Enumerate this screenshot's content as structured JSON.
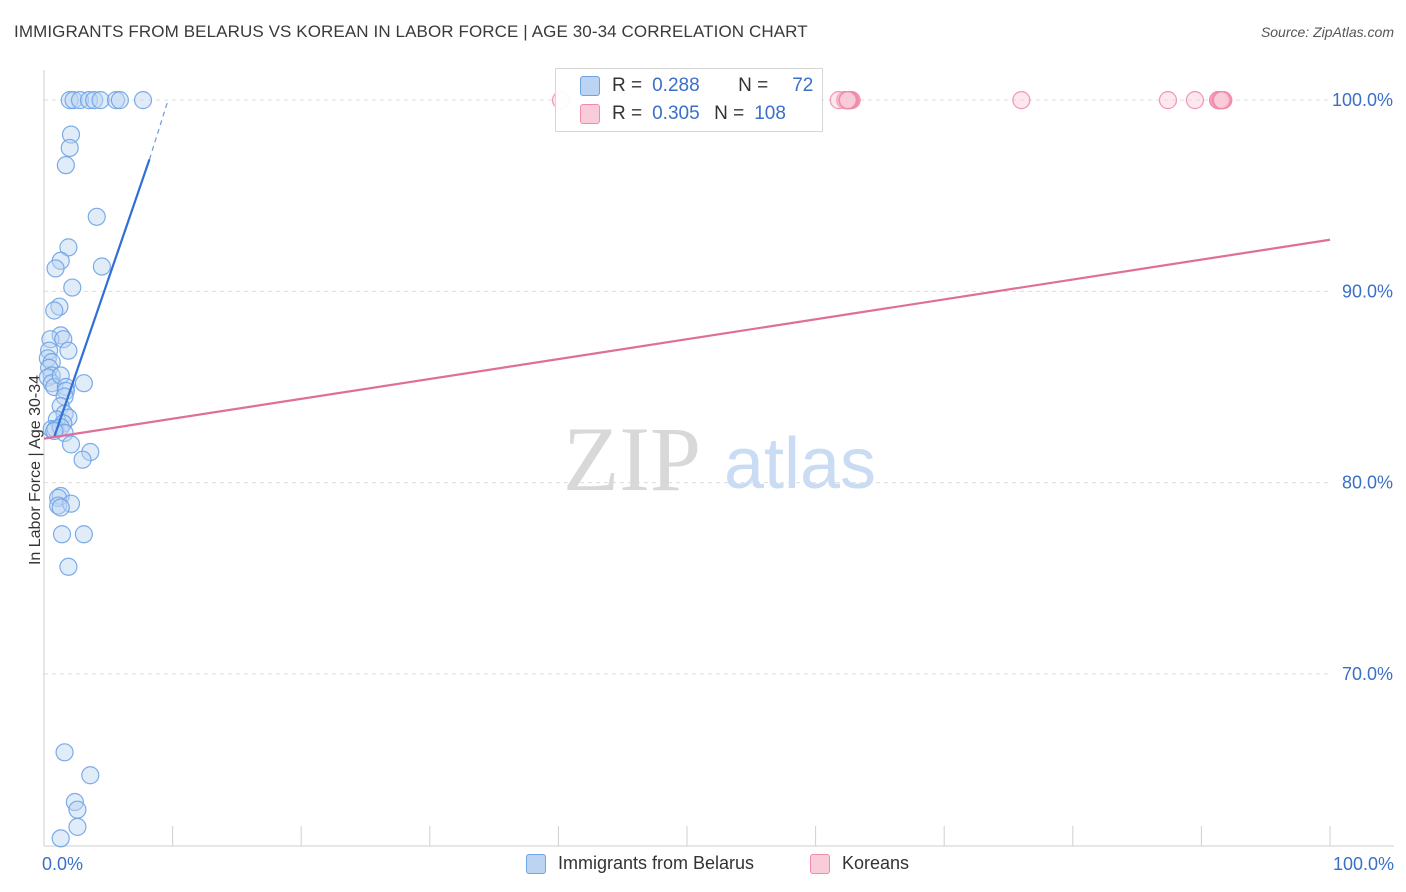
{
  "title": "IMMIGRANTS FROM BELARUS VS KOREAN IN LABOR FORCE | AGE 30-34 CORRELATION CHART",
  "source": "Source: ZipAtlas.com",
  "watermark": {
    "zip": "ZIP",
    "atlas": "atlas"
  },
  "legend_top": {
    "r_label": "R =",
    "n_label": "N =",
    "rows": [
      {
        "r": "0.288",
        "n": "72"
      },
      {
        "r": "0.305",
        "n": "108"
      }
    ]
  },
  "chart_data": {
    "type": "scatter",
    "title": "IMMIGRANTS FROM BELARUS VS KOREAN IN LABOR FORCE | AGE 30-34 CORRELATION CHART",
    "xlabel": "",
    "ylabel": "In Labor Force | Age 30-34",
    "xlim": [
      0,
      100
    ],
    "ylim": [
      61,
      101
    ],
    "x_tick_labels": [
      "0.0%",
      "100.0%"
    ],
    "y_ticks": [
      100,
      90,
      80,
      70
    ],
    "y_tick_labels": [
      "100.0%",
      "90.0%",
      "80.0%",
      "70.0%"
    ],
    "grid": true,
    "legend_position": "bottom",
    "series": [
      {
        "name": "Immigrants from Belarus",
        "color": "#6ea3e6",
        "fill": "#bcd4f2",
        "line_color": "#2f6fd6",
        "r": 0.288,
        "n": 72,
        "trend": {
          "x0": 0.8,
          "y0": 82.4,
          "x1": 8.2,
          "y1": 96.9,
          "dash_to_x": 9.6,
          "dash_to_y": 99.9
        },
        "points": [
          [
            2.0,
            100.0
          ],
          [
            2.3,
            100.0
          ],
          [
            2.8,
            100.0
          ],
          [
            3.5,
            100.0
          ],
          [
            3.9,
            100.0
          ],
          [
            4.4,
            100.0
          ],
          [
            5.6,
            100.0
          ],
          [
            5.9,
            100.0
          ],
          [
            7.7,
            100.0
          ],
          [
            2.1,
            98.2
          ],
          [
            2.0,
            97.5
          ],
          [
            1.7,
            96.6
          ],
          [
            4.1,
            93.9
          ],
          [
            1.9,
            92.3
          ],
          [
            1.3,
            91.6
          ],
          [
            0.9,
            91.2
          ],
          [
            4.5,
            91.3
          ],
          [
            2.2,
            90.2
          ],
          [
            1.2,
            89.2
          ],
          [
            0.8,
            89.0
          ],
          [
            1.3,
            87.7
          ],
          [
            0.5,
            87.5
          ],
          [
            1.5,
            87.5
          ],
          [
            0.4,
            86.9
          ],
          [
            1.9,
            86.9
          ],
          [
            0.3,
            86.5
          ],
          [
            0.6,
            86.3
          ],
          [
            0.4,
            86.0
          ],
          [
            0.6,
            85.6
          ],
          [
            0.3,
            85.5
          ],
          [
            0.6,
            85.2
          ],
          [
            3.1,
            85.2
          ],
          [
            0.8,
            85.0
          ],
          [
            1.3,
            85.6
          ],
          [
            1.7,
            85.0
          ],
          [
            1.7,
            84.8
          ],
          [
            1.6,
            84.5
          ],
          [
            1.3,
            84.0
          ],
          [
            1.6,
            83.6
          ],
          [
            1.9,
            83.4
          ],
          [
            1.0,
            83.3
          ],
          [
            1.5,
            83.1
          ],
          [
            0.6,
            82.8
          ],
          [
            0.9,
            82.8
          ],
          [
            1.3,
            82.9
          ],
          [
            1.6,
            82.6
          ],
          [
            0.8,
            82.7
          ],
          [
            2.1,
            82.0
          ],
          [
            3.6,
            81.6
          ],
          [
            3.0,
            81.2
          ],
          [
            1.3,
            79.3
          ],
          [
            1.1,
            79.2
          ],
          [
            1.1,
            78.8
          ],
          [
            2.1,
            78.9
          ],
          [
            1.3,
            78.7
          ],
          [
            1.4,
            77.3
          ],
          [
            3.1,
            77.3
          ],
          [
            1.9,
            75.6
          ],
          [
            1.6,
            65.9
          ],
          [
            3.6,
            64.7
          ],
          [
            2.4,
            63.3
          ],
          [
            2.6,
            62.9
          ],
          [
            2.6,
            62.0
          ],
          [
            1.3,
            61.4
          ]
        ]
      },
      {
        "name": "Koreans",
        "color": "#f08bab",
        "fill": "#f9ccd9",
        "line_color": "#e06e9a",
        "r": 0.305,
        "n": 108,
        "trend": {
          "x0": 0.0,
          "y0": 82.3,
          "x1": 100.0,
          "y1": 92.7
        },
        "points": [
          [
            40.2,
            100.0
          ],
          [
            62.7,
            100.0
          ],
          [
            62.3,
            100.0
          ],
          [
            62.6,
            100.0
          ],
          [
            62.5,
            100.0
          ],
          [
            62.6,
            100.0
          ],
          [
            62.8,
            100.0
          ],
          [
            62.6,
            100.0
          ],
          [
            62.4,
            100.0
          ],
          [
            62.5,
            100.0
          ],
          [
            62.6,
            100.0
          ],
          [
            62.7,
            100.0
          ],
          [
            62.6,
            100.0
          ],
          [
            62.6,
            100.0
          ],
          [
            62.5,
            100.0
          ],
          [
            62.5,
            100.0
          ],
          [
            62.6,
            100.0
          ],
          [
            62.6,
            100.0
          ],
          [
            62.3,
            100.0
          ],
          [
            61.8,
            100.0
          ],
          [
            62.6,
            100.0
          ],
          [
            62.5,
            100.0
          ],
          [
            62.5,
            100.0
          ],
          [
            62.5,
            100.0
          ],
          [
            62.5,
            100.0
          ],
          [
            76.0,
            100.0
          ],
          [
            87.4,
            100.0
          ],
          [
            89.5,
            100.0
          ],
          [
            91.5,
            100.0
          ],
          [
            91.4,
            100.0
          ],
          [
            91.4,
            100.0
          ],
          [
            91.7,
            100.0
          ],
          [
            91.3,
            100.0
          ],
          [
            91.5,
            100.0
          ],
          [
            91.5,
            100.0
          ],
          [
            91.6,
            100.0
          ],
          [
            91.6,
            100.0
          ],
          [
            91.5,
            100.0
          ],
          [
            91.5,
            100.0
          ],
          [
            91.5,
            100.0
          ],
          [
            91.7,
            100.0
          ],
          [
            91.5,
            100.0
          ],
          [
            91.5,
            100.0
          ],
          [
            91.5,
            100.0
          ],
          [
            91.4,
            100.0
          ],
          [
            91.4,
            100.0
          ],
          [
            91.4,
            100.0
          ],
          [
            91.5,
            100.0
          ],
          [
            91.6,
            100.0
          ],
          [
            91.6,
            100.0
          ],
          [
            91.4,
            100.0
          ],
          [
            91.4,
            100.0
          ],
          [
            91.6,
            100.0
          ],
          [
            91.5,
            100.0
          ],
          [
            91.5,
            100.0
          ],
          [
            91.6,
            100.0
          ],
          [
            91.6,
            100.0
          ],
          [
            91.5,
            100.0
          ],
          [
            91.5,
            100.0
          ],
          [
            91.3,
            100.0
          ],
          [
            91.5,
            100.0
          ],
          [
            91.6,
            100.0
          ],
          [
            91.5,
            100.0
          ],
          [
            91.6,
            100.0
          ]
        ]
      }
    ]
  },
  "bottom_legend": [
    {
      "label": "Immigrants from Belarus"
    },
    {
      "label": "Koreans"
    }
  ]
}
